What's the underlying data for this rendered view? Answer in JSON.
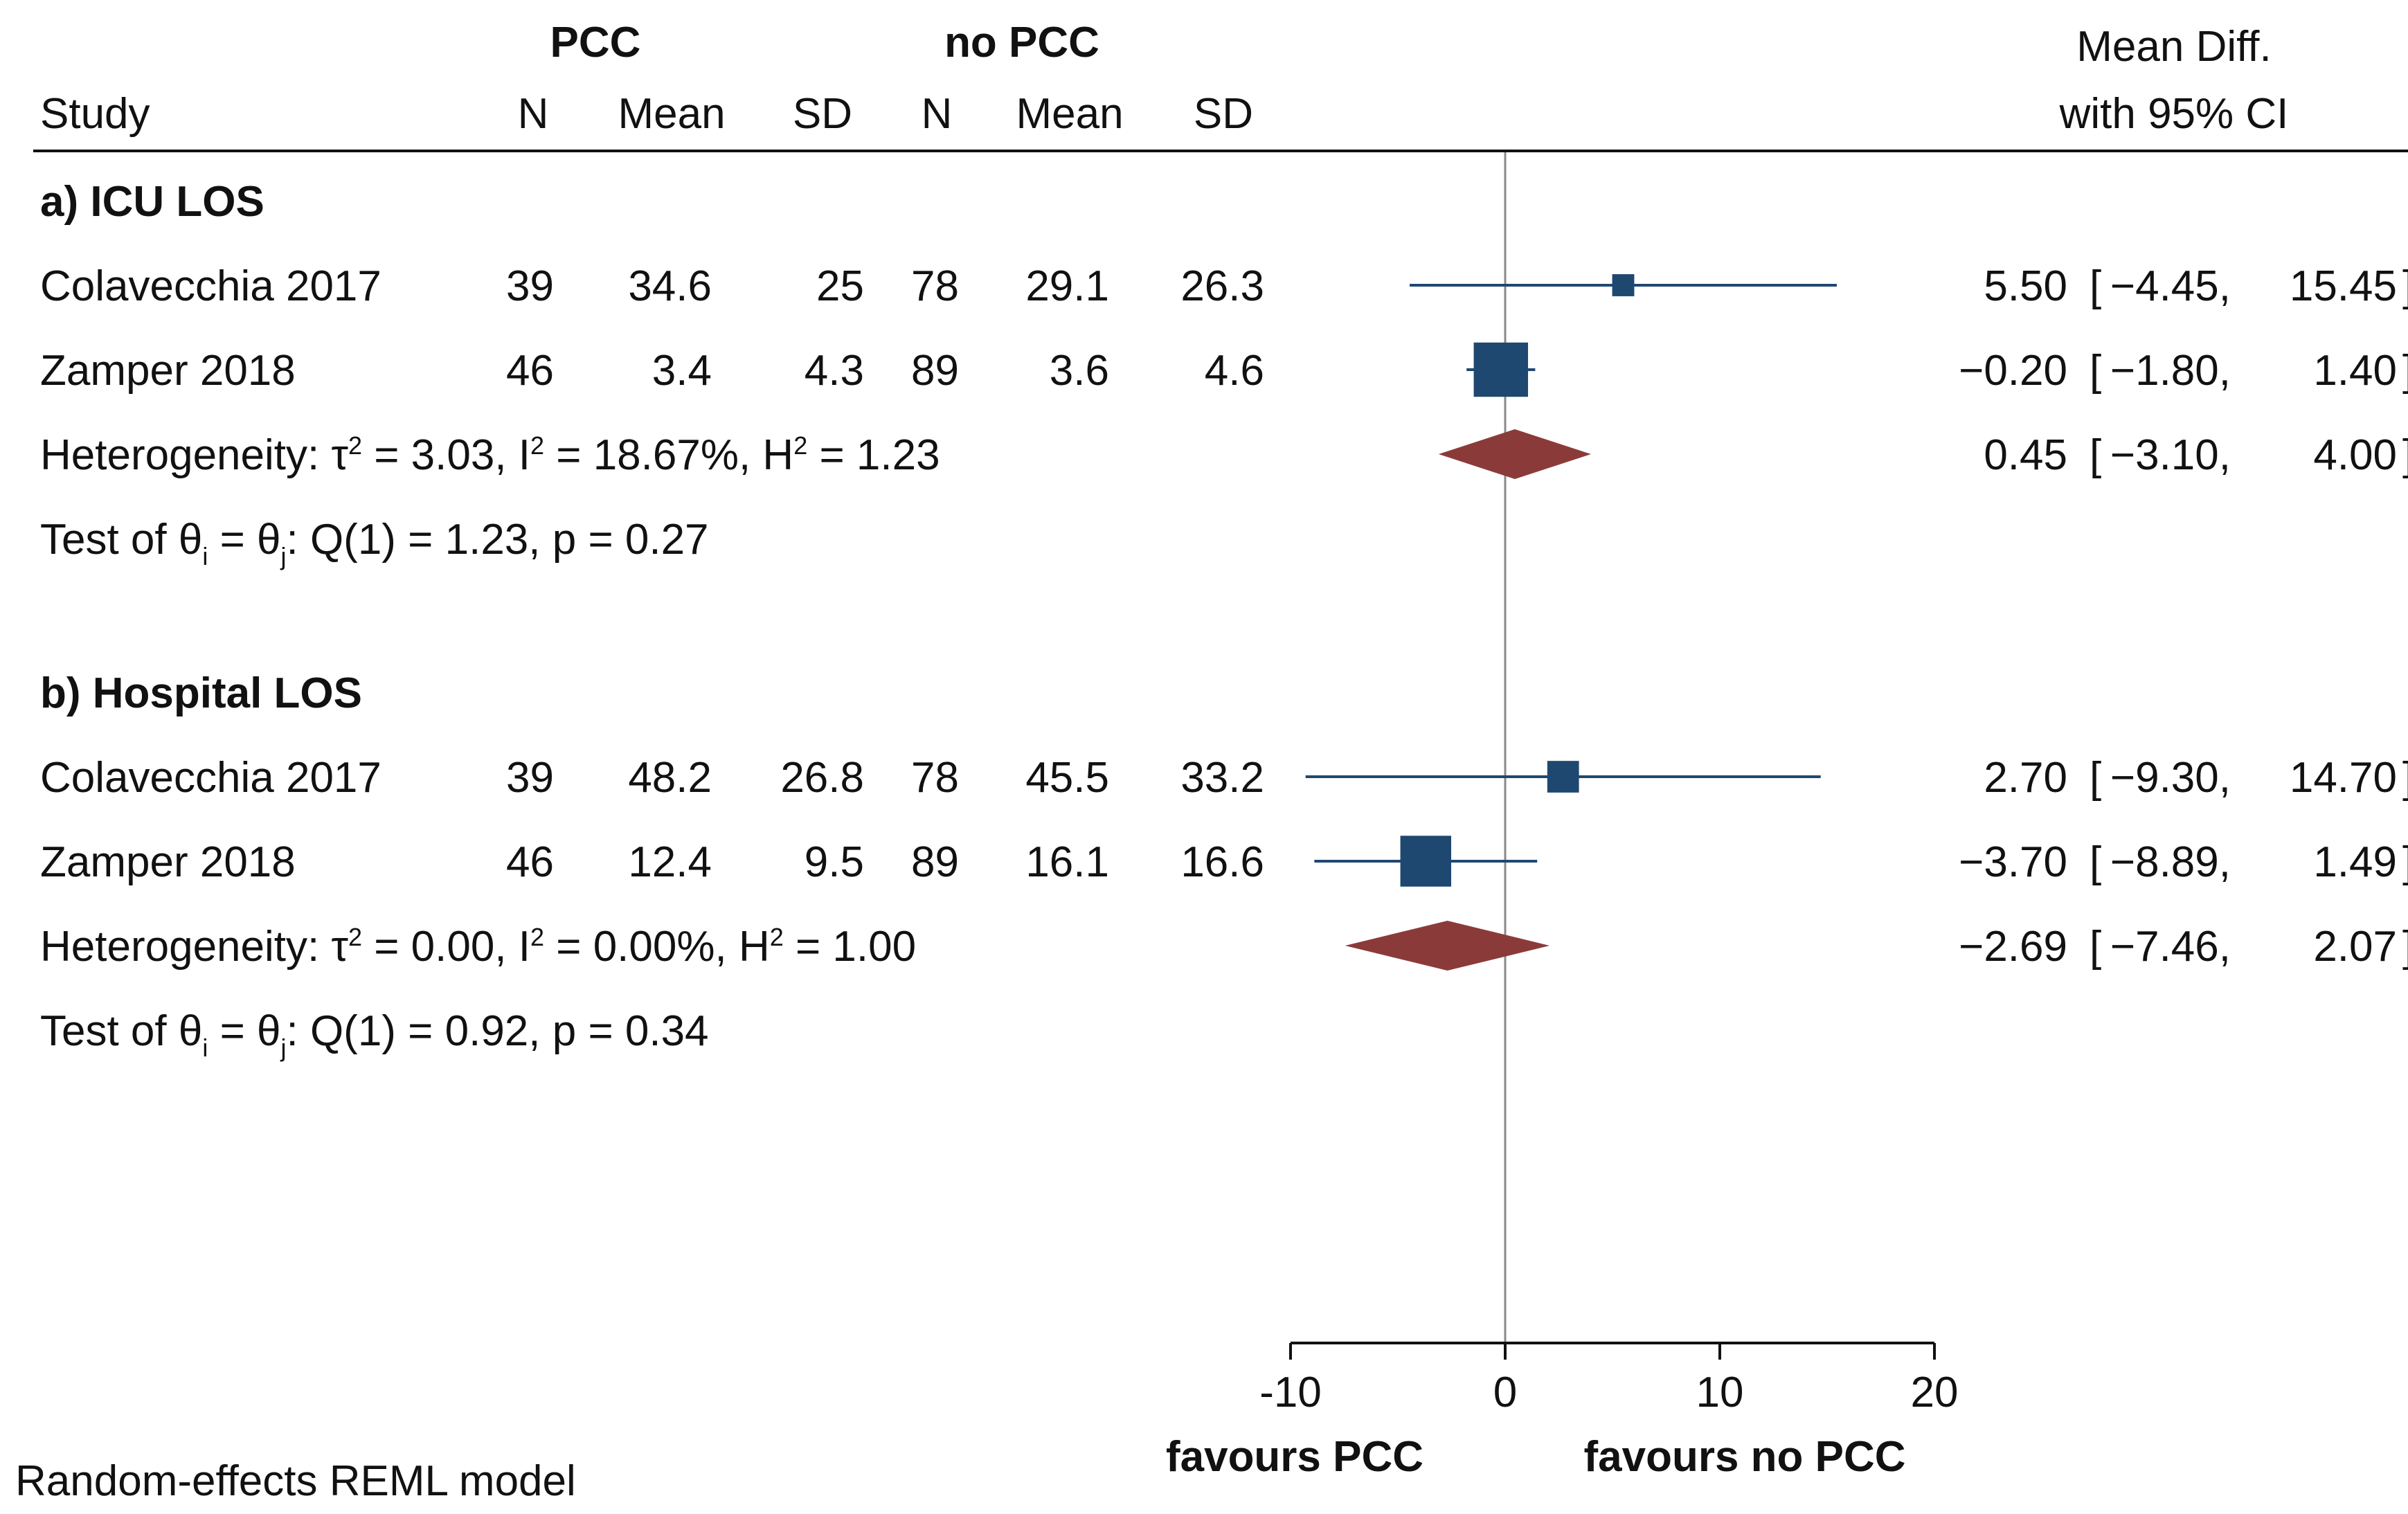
{
  "chart_data": {
    "type": "forest",
    "columns": {
      "study": "Study",
      "group1": "PCC",
      "group2": "no PCC",
      "n": "N",
      "mean": "Mean",
      "sd": "SD",
      "effect_line1": "Mean Diff.",
      "effect_line2": "with 95% CI"
    },
    "xaxis": {
      "ticks": [
        -10,
        0,
        10,
        20
      ],
      "tick_labels": [
        "-10",
        "0",
        "10",
        "20"
      ],
      "range": [
        -10,
        20
      ],
      "null_value": 0,
      "label_left": "favours PCC",
      "label_right": "favours no PCC"
    },
    "footnote": "Random-effects REML model",
    "subgroups": [
      {
        "title": "a) ICU LOS",
        "studies": [
          {
            "name": "Colavecchia 2017",
            "n1": "39",
            "mean1": "34.6",
            "sd1": "25",
            "n2": "78",
            "mean2": "29.1",
            "sd2": "26.3",
            "es": 5.5,
            "lo": -4.45,
            "hi": 15.45,
            "es_label": "5.50",
            "lo_label": "−4.45",
            "hi_label": "15.45",
            "weight": 0.05
          },
          {
            "name": "Zamper 2018",
            "n1": "46",
            "mean1": "3.4",
            "sd1": "4.3",
            "n2": "89",
            "mean2": "3.6",
            "sd2": "4.6",
            "es": -0.2,
            "lo": -1.8,
            "hi": 1.4,
            "es_label": "−0.20",
            "lo_label": "−1.80",
            "hi_label": "1.40",
            "weight": 0.95
          }
        ],
        "overall": {
          "es": 0.45,
          "lo": -3.1,
          "hi": 4.0,
          "es_label": "0.45",
          "lo_label": "−3.10",
          "hi_label": "4.00"
        },
        "heterogeneity": {
          "prefix": "Heterogeneity: ",
          "tau_sym": "τ",
          "sup": "2",
          "tau_val": " = 3.03, ",
          "i_sym": "I",
          "i_val": " = 18.67%, ",
          "h_sym": "H",
          "h_val": " = 1.23"
        },
        "test": {
          "prefix": "Test of ",
          "theta": "θ",
          "sub_i": "i",
          "eq": " = ",
          "sub_j": "j",
          "result": ": Q(1) = 1.23, p = 0.27"
        }
      },
      {
        "title": "b) Hospital LOS",
        "studies": [
          {
            "name": "Colavecchia 2017",
            "n1": "39",
            "mean1": "48.2",
            "sd1": "26.8",
            "n2": "78",
            "mean2": "45.5",
            "sd2": "33.2",
            "es": 2.7,
            "lo": -9.3,
            "hi": 14.7,
            "es_label": "2.70",
            "lo_label": "−9.30",
            "hi_label": "14.70",
            "weight": 0.2
          },
          {
            "name": "Zamper 2018",
            "n1": "46",
            "mean1": "12.4",
            "sd1": "9.5",
            "n2": "89",
            "mean2": "16.1",
            "sd2": "16.6",
            "es": -3.7,
            "lo": -8.89,
            "hi": 1.49,
            "es_label": "−3.70",
            "lo_label": "−8.89",
            "hi_label": "1.49",
            "weight": 0.8
          }
        ],
        "overall": {
          "es": -2.69,
          "lo": -7.46,
          "hi": 2.07,
          "es_label": "−2.69",
          "lo_label": "−7.46",
          "hi_label": "2.07"
        },
        "heterogeneity": {
          "prefix": "Heterogeneity: ",
          "tau_sym": "τ",
          "sup": "2",
          "tau_val": " = 0.00, ",
          "i_sym": "I",
          "i_val": " = 0.00%, ",
          "h_sym": "H",
          "h_val": " = 1.00"
        },
        "test": {
          "prefix": "Test of ",
          "theta": "θ",
          "sub_i": "i",
          "eq": " = ",
          "sub_j": "j",
          "result": ": Q(1) = 0.92, p = 0.34"
        }
      }
    ],
    "colors": {
      "marker": "#1f4870",
      "diamond": "#8b3a3a",
      "text": "#111111",
      "rule": "#111111",
      "null_line": "#8a8a8a"
    }
  }
}
